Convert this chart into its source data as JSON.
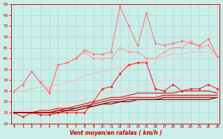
{
  "background_color": "#cceee8",
  "grid_color": "#aadddd",
  "xlabel": "Vent moyen/en rafales ( km/h )",
  "xlabel_color": "#cc0000",
  "tick_color": "#cc0000",
  "x_ticks": [
    0,
    1,
    2,
    3,
    4,
    5,
    6,
    7,
    8,
    9,
    10,
    11,
    12,
    13,
    14,
    15,
    16,
    17,
    18,
    19,
    20,
    21,
    22,
    23
  ],
  "ylim": [
    10,
    65
  ],
  "yticks": [
    10,
    15,
    20,
    25,
    30,
    35,
    40,
    45,
    50,
    55,
    60,
    65
  ],
  "xlim": [
    -0.3,
    23.3
  ],
  "series": [
    {
      "color": "#ff9999",
      "alpha": 1.0,
      "linewidth": 0.8,
      "marker": "D",
      "markersize": 1.8,
      "values": [
        25,
        28,
        34,
        29,
        25,
        37,
        38,
        40,
        43,
        40,
        40,
        40,
        45,
        43,
        43,
        40,
        40,
        43,
        45,
        45,
        48,
        45,
        46,
        41
      ]
    },
    {
      "color": "#ff7777",
      "alpha": 1.0,
      "linewidth": 0.8,
      "marker": "D",
      "markersize": 1.8,
      "values": [
        25,
        28,
        34,
        29,
        24,
        37,
        38,
        40,
        44,
        42,
        42,
        43,
        64,
        55,
        46,
        61,
        47,
        46,
        47,
        48,
        47,
        46,
        49,
        41
      ]
    },
    {
      "color": "#ffbbbb",
      "alpha": 1.0,
      "linewidth": 0.9,
      "marker": null,
      "markersize": 0,
      "values": [
        25,
        25,
        26,
        27,
        27,
        28,
        29,
        30,
        32,
        33,
        34,
        35,
        36,
        37,
        38,
        39,
        40,
        41,
        42,
        42,
        43,
        43,
        43,
        41
      ]
    },
    {
      "color": "#ffcccc",
      "alpha": 1.0,
      "linewidth": 0.9,
      "marker": null,
      "markersize": 0,
      "values": [
        16,
        16,
        17,
        17,
        17,
        18,
        19,
        20,
        21,
        22,
        23,
        24,
        25,
        26,
        27,
        28,
        29,
        30,
        31,
        31,
        32,
        32,
        32,
        31
      ]
    },
    {
      "color": "#ff2222",
      "alpha": 1.0,
      "linewidth": 0.8,
      "marker": "D",
      "markersize": 1.8,
      "values": [
        15,
        13,
        15,
        14,
        14,
        15,
        15,
        15,
        15,
        20,
        26,
        27,
        33,
        37,
        38,
        38,
        26,
        25,
        28,
        25,
        26,
        26,
        28,
        26
      ]
    },
    {
      "color": "#dd2222",
      "alpha": 1.0,
      "linewidth": 0.9,
      "marker": null,
      "markersize": 0,
      "values": [
        15,
        15,
        15,
        16,
        16,
        17,
        17,
        18,
        19,
        20,
        21,
        22,
        22,
        23,
        24,
        24,
        24,
        24,
        24,
        25,
        25,
        25,
        25,
        24
      ]
    },
    {
      "color": "#cc1111",
      "alpha": 1.0,
      "linewidth": 0.9,
      "marker": null,
      "markersize": 0,
      "values": [
        15,
        15,
        15,
        15,
        15,
        16,
        17,
        17,
        18,
        19,
        20,
        21,
        21,
        22,
        22,
        22,
        22,
        23,
        23,
        23,
        23,
        23,
        23,
        23
      ]
    },
    {
      "color": "#bb0000",
      "alpha": 1.0,
      "linewidth": 0.9,
      "marker": null,
      "markersize": 0,
      "values": [
        15,
        15,
        15,
        15,
        15,
        16,
        16,
        17,
        18,
        18,
        19,
        20,
        20,
        21,
        21,
        21,
        21,
        22,
        22,
        22,
        22,
        22,
        22,
        22
      ]
    },
    {
      "color": "#990000",
      "alpha": 1.0,
      "linewidth": 0.9,
      "marker": null,
      "markersize": 0,
      "values": [
        15,
        15,
        15,
        15,
        15,
        15,
        16,
        16,
        17,
        18,
        19,
        19,
        20,
        20,
        21,
        21,
        21,
        21,
        21,
        21,
        21,
        21,
        21,
        22
      ]
    }
  ]
}
